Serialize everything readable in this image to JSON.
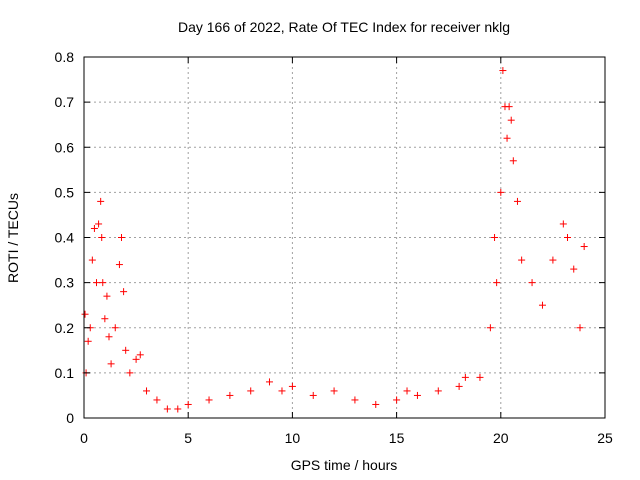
{
  "chart_data": {
    "type": "scatter",
    "title": "Day 166 of 2022, Rate Of TEC Index for receiver nklg",
    "xlabel": "GPS time / hours",
    "ylabel": "ROTI / TECUs",
    "xlim": [
      0,
      25
    ],
    "ylim": [
      0,
      0.8
    ],
    "x_ticks": [
      "0",
      "5",
      "10",
      "15",
      "20",
      "25"
    ],
    "y_ticks": [
      "0",
      "0.1",
      "0.2",
      "0.3",
      "0.4",
      "0.5",
      "0.6",
      "0.7",
      "0.8"
    ],
    "grid": true,
    "marker": "+",
    "color": "#ff0000",
    "series": [
      {
        "x": [
          0.05,
          0.1,
          0.2,
          0.3,
          0.4,
          0.5,
          0.6,
          0.7,
          0.8,
          0.85,
          0.9,
          1.0,
          1.1,
          1.2,
          1.3,
          1.5,
          1.7,
          1.8,
          1.9,
          2.0,
          2.2,
          2.5,
          2.7,
          3.0,
          3.5,
          4.0,
          4.5,
          5.0,
          6.0,
          7.0,
          8.0,
          8.9,
          9.5,
          10.0,
          11.0,
          12.0,
          13.0,
          14.0,
          15.0,
          15.5,
          16.0,
          17.0,
          18.0,
          18.3,
          19.0,
          19.5,
          19.7,
          19.8,
          20.0,
          20.1,
          20.2,
          20.3,
          20.4,
          20.5,
          20.6,
          20.8,
          21.0,
          21.5,
          22.0,
          22.5,
          23.0,
          23.2,
          23.5,
          23.8,
          24.0
        ],
        "y": [
          0.23,
          0.1,
          0.17,
          0.2,
          0.35,
          0.42,
          0.3,
          0.43,
          0.48,
          0.4,
          0.3,
          0.22,
          0.27,
          0.18,
          0.12,
          0.2,
          0.34,
          0.4,
          0.28,
          0.15,
          0.1,
          0.13,
          0.14,
          0.06,
          0.04,
          0.02,
          0.02,
          0.03,
          0.04,
          0.05,
          0.06,
          0.08,
          0.06,
          0.07,
          0.05,
          0.06,
          0.04,
          0.03,
          0.04,
          0.06,
          0.05,
          0.06,
          0.07,
          0.09,
          0.09,
          0.2,
          0.4,
          0.3,
          0.5,
          0.77,
          0.69,
          0.62,
          0.69,
          0.66,
          0.57,
          0.48,
          0.35,
          0.3,
          0.25,
          0.35,
          0.43,
          0.4,
          0.33,
          0.2,
          0.38
        ]
      }
    ]
  }
}
